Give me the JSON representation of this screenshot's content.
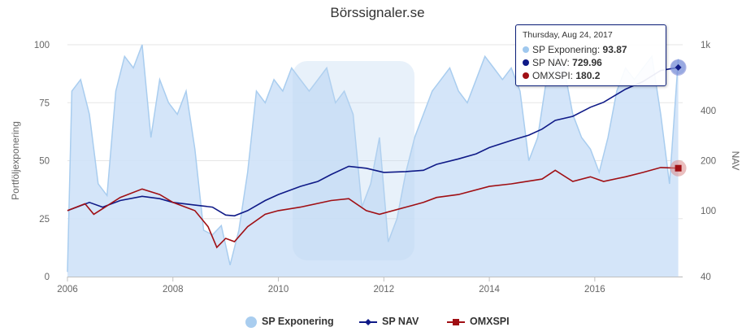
{
  "title": "Börssignaler.se",
  "colors": {
    "exposure_fill": "#cfe2f8",
    "exposure_line": "#a9cdef",
    "nav": "#0f1a87",
    "omx": "#a00f14",
    "grid": "#e6e6e6",
    "axis_text": "#666666"
  },
  "tooltip": {
    "date": "Thursday, Aug 24, 2017",
    "rows": [
      {
        "label": "SP Exponering:",
        "value": "93.87",
        "color": "#9fc8ee"
      },
      {
        "label": "SP NAV:",
        "value": "729.96",
        "color": "#0f1a87"
      },
      {
        "label": "OMXSPI:",
        "value": "180.2",
        "color": "#a00f14"
      }
    ]
  },
  "legend": [
    {
      "label": "SP Exponering",
      "color": "#a9cdef",
      "symbol": "circle"
    },
    {
      "label": "SP NAV",
      "color": "#0f1a87",
      "symbol": "line-diamond"
    },
    {
      "label": "OMXSPI",
      "color": "#a00f14",
      "symbol": "line-square"
    }
  ],
  "chart_data": {
    "type": "line",
    "title": "Börssignaler.se",
    "x_axis": {
      "type": "date",
      "range": [
        "2006-01",
        "2017-09"
      ],
      "ticks": [
        "2006",
        "2008",
        "2010",
        "2012",
        "2014",
        "2016"
      ]
    },
    "y_left": {
      "label": "Portföljexponering",
      "range": [
        0,
        100
      ],
      "ticks": [
        "0",
        "25",
        "50",
        "75",
        "100"
      ]
    },
    "y_right": {
      "label": "NAV",
      "scale": "log",
      "range": [
        40,
        1000
      ],
      "ticks": [
        "40",
        "100",
        "200",
        "400",
        "1k"
      ],
      "tick_values": [
        40,
        100,
        200,
        400,
        1000
      ]
    },
    "grid": true,
    "legend_position": "bottom",
    "series": [
      {
        "name": "SP Exponering",
        "type": "area",
        "axis": "left",
        "x": [
          "2006-01",
          "2006-02",
          "2006-04",
          "2006-06",
          "2006-08",
          "2006-10",
          "2006-12",
          "2007-02",
          "2007-04",
          "2007-06",
          "2007-08",
          "2007-10",
          "2007-12",
          "2008-02",
          "2008-04",
          "2008-06",
          "2008-08",
          "2008-10",
          "2008-12",
          "2009-02",
          "2009-04",
          "2009-06",
          "2009-08",
          "2009-10",
          "2009-12",
          "2010-02",
          "2010-04",
          "2010-06",
          "2010-08",
          "2010-10",
          "2010-12",
          "2011-02",
          "2011-04",
          "2011-06",
          "2011-08",
          "2011-10",
          "2011-12",
          "2012-02",
          "2012-04",
          "2012-06",
          "2012-08",
          "2012-10",
          "2012-12",
          "2013-02",
          "2013-04",
          "2013-06",
          "2013-08",
          "2013-10",
          "2013-12",
          "2014-02",
          "2014-04",
          "2014-06",
          "2014-08",
          "2014-10",
          "2014-12",
          "2015-02",
          "2015-04",
          "2015-06",
          "2015-08",
          "2015-10",
          "2015-12",
          "2016-02",
          "2016-04",
          "2016-06",
          "2016-08",
          "2016-10",
          "2016-12",
          "2017-02",
          "2017-04",
          "2017-06",
          "2017-08"
        ],
        "y": [
          2,
          80,
          85,
          70,
          40,
          35,
          80,
          95,
          90,
          100,
          60,
          85,
          75,
          70,
          80,
          55,
          20,
          18,
          22,
          5,
          20,
          45,
          80,
          75,
          85,
          80,
          90,
          85,
          80,
          85,
          90,
          75,
          80,
          70,
          30,
          40,
          60,
          15,
          25,
          45,
          60,
          70,
          80,
          85,
          90,
          80,
          75,
          85,
          95,
          90,
          85,
          90,
          80,
          50,
          60,
          85,
          95,
          90,
          70,
          60,
          55,
          45,
          60,
          80,
          90,
          85,
          90,
          95,
          70,
          40,
          93.87
        ]
      },
      {
        "name": "SP NAV",
        "type": "line",
        "axis": "right",
        "x": [
          "2006-01",
          "2006-06",
          "2006-09",
          "2007-01",
          "2007-06",
          "2007-10",
          "2008-01",
          "2008-06",
          "2008-10",
          "2009-01",
          "2009-03",
          "2009-06",
          "2009-10",
          "2010-01",
          "2010-06",
          "2010-10",
          "2011-01",
          "2011-05",
          "2011-09",
          "2012-01",
          "2012-06",
          "2012-10",
          "2013-01",
          "2013-06",
          "2013-10",
          "2014-01",
          "2014-06",
          "2014-10",
          "2015-01",
          "2015-04",
          "2015-08",
          "2015-12",
          "2016-03",
          "2016-08",
          "2016-12",
          "2017-04",
          "2017-08"
        ],
        "y": [
          100,
          112,
          105,
          115,
          122,
          118,
          112,
          108,
          105,
          94,
          93,
          100,
          115,
          125,
          140,
          150,
          165,
          185,
          180,
          170,
          172,
          175,
          190,
          205,
          220,
          240,
          265,
          285,
          310,
          350,
          370,
          420,
          450,
          540,
          600,
          700,
          729.96
        ]
      },
      {
        "name": "OMXSPI",
        "type": "line",
        "axis": "right",
        "x": [
          "2006-01",
          "2006-05",
          "2006-07",
          "2007-01",
          "2007-06",
          "2007-10",
          "2008-01",
          "2008-06",
          "2008-09",
          "2008-11",
          "2009-01",
          "2009-03",
          "2009-06",
          "2009-10",
          "2010-01",
          "2010-06",
          "2011-01",
          "2011-05",
          "2011-09",
          "2011-12",
          "2012-06",
          "2012-10",
          "2013-01",
          "2013-06",
          "2014-01",
          "2014-06",
          "2015-01",
          "2015-04",
          "2015-08",
          "2015-12",
          "2016-03",
          "2016-08",
          "2016-12",
          "2017-04",
          "2017-08"
        ],
        "y": [
          100,
          110,
          95,
          120,
          135,
          125,
          112,
          100,
          80,
          60,
          68,
          65,
          80,
          95,
          100,
          105,
          115,
          118,
          100,
          95,
          105,
          112,
          120,
          125,
          140,
          145,
          155,
          175,
          150,
          160,
          150,
          160,
          170,
          182,
          180.2
        ]
      }
    ]
  }
}
